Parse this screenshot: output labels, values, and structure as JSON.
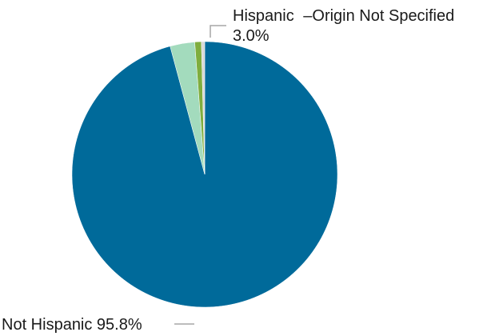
{
  "chart_data": {
    "type": "pie",
    "slices": [
      {
        "label": "Not Hispanic",
        "value": 95.8,
        "color": "#006a9a"
      },
      {
        "label": "Hispanic",
        "value": 3.0,
        "color": "#a3dbbd"
      },
      {
        "label": "",
        "value": 0.8,
        "color": "#7fad3e"
      },
      {
        "label": "",
        "value": 0.4,
        "color": "#d8d8d8"
      }
    ],
    "labels": {
      "not_hispanic": "Not Hispanic 95.8%",
      "hispanic": "Hispanic",
      "hispanic_pct": "3.0%",
      "origin_not_specified": "–Origin Not Specified"
    },
    "legend": "none",
    "start_angle_deg": 0,
    "direction": "clockwise"
  }
}
